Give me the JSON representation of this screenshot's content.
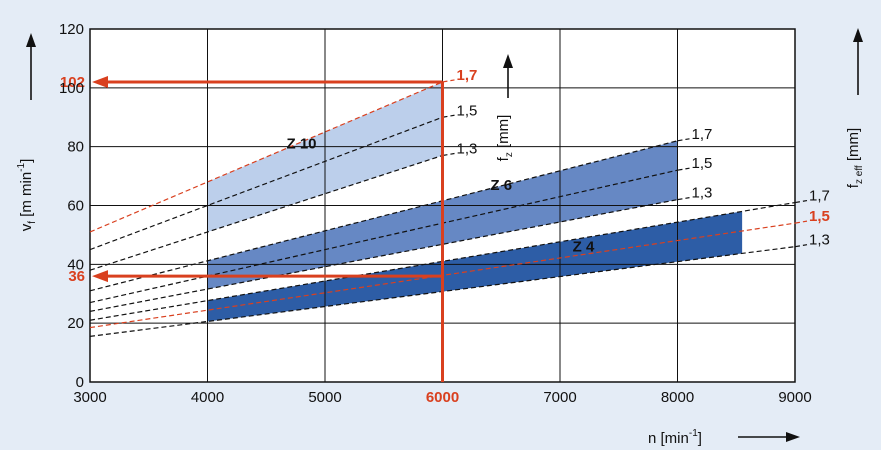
{
  "chart_data": {
    "type": "line",
    "x_axis": {
      "label": "n [min",
      "label_sup": "-1",
      "label_end": "]",
      "min": 3000,
      "max": 9000,
      "ticks": [
        3000,
        4000,
        5000,
        6000,
        7000,
        8000,
        9000
      ],
      "highlight_tick": 6000
    },
    "y_axis": {
      "label_main": "v",
      "label_sub": "f",
      "label_unit": " [m min",
      "label_sup": "-1",
      "label_end": "]",
      "min": 0,
      "max": 120,
      "ticks": [
        0,
        20,
        40,
        60,
        80,
        100,
        120
      ]
    },
    "inner_axis_label": {
      "main": "f",
      "sub": "z",
      "unit": " [mm]"
    },
    "right_axis_label": {
      "main": "f",
      "sub": "z eff",
      "unit": " [mm]"
    },
    "bands": [
      {
        "name": "Z 10",
        "color": "#bccfeb",
        "x_range": [
          4000,
          6000
        ],
        "line_x_range": [
          3000,
          6000
        ],
        "lines": [
          {
            "fz": "1,7",
            "values": [
              51,
              102
            ],
            "highlight": true
          },
          {
            "fz": "1,5",
            "values": [
              45,
              90
            ],
            "highlight": false
          },
          {
            "fz": "1,3",
            "values": [
              38,
              77
            ],
            "highlight": false
          }
        ],
        "label_data_x": 4800,
        "label_data_y": 81
      },
      {
        "name": "Z 6",
        "color": "#6688c4",
        "x_range": [
          4000,
          8000
        ],
        "line_x_range": [
          3000,
          8000
        ],
        "lines": [
          {
            "fz": "1,7",
            "values": [
              31,
              82
            ],
            "highlight": false
          },
          {
            "fz": "1,5",
            "values": [
              27,
              72
            ],
            "highlight": false
          },
          {
            "fz": "1,3",
            "values": [
              24,
              62
            ],
            "highlight": false
          }
        ],
        "label_data_x": 6500,
        "label_data_y": 67
      },
      {
        "name": "Z 4",
        "color": "#2d5da6",
        "x_range": [
          4000,
          8550
        ],
        "line_x_range": [
          3000,
          9000
        ],
        "lines": [
          {
            "fz": "1,7",
            "values": [
              21,
              61
            ],
            "highlight": false
          },
          {
            "fz": "1,5",
            "values": [
              18.5,
              54
            ],
            "highlight": true
          },
          {
            "fz": "1,3",
            "values": [
              15.5,
              46
            ],
            "highlight": false
          }
        ],
        "label_data_x": 7200,
        "label_data_y": 46
      }
    ],
    "reading_lines": [
      {
        "x": 6000,
        "y": 102,
        "label": "102"
      },
      {
        "x": 6000,
        "y": 36,
        "label": "36"
      }
    ],
    "grid": true
  },
  "colors": {
    "background": "#e4ecf6",
    "highlight": "#d9401f",
    "grid": "#111111"
  }
}
